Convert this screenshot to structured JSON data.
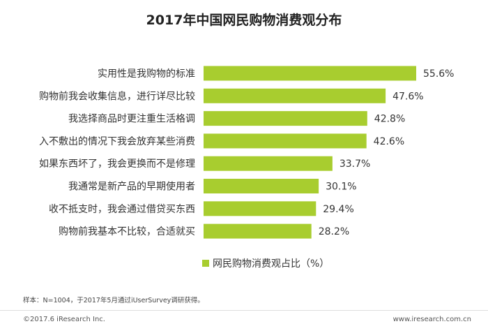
{
  "chart_data": {
    "type": "bar",
    "orientation": "horizontal",
    "title": "2017年中国网民购物消费观分布",
    "categories": [
      "实用性是我购物的标准",
      "购物前我会收集信息，进行详尽比较",
      "我选择商品时更注重生活格调",
      "入不敷出的情况下我会放弃某些消费",
      "如果东西坏了，我会更换而不是修理",
      "我通常是新产品的早期使用者",
      "收不抵支时，我会通过借贷买东西",
      "购物前我基本不比较，合适就买"
    ],
    "series": [
      {
        "name": "网民购物消费观占比（%）",
        "values": [
          55.6,
          47.6,
          42.8,
          42.6,
          33.7,
          30.1,
          29.4,
          28.2
        ],
        "labels": [
          "55.6%",
          "47.6%",
          "42.8%",
          "42.6%",
          "33.7%",
          "30.1%",
          "29.4%",
          "28.2%"
        ]
      }
    ],
    "bar_color": "#a8cd2f",
    "legend": "bottom-center"
  },
  "footer": {
    "note": "样本：N=1004，于2017年5月通过iUserSurvey调研获得。",
    "copyright": "©2017.6 iResearch Inc.",
    "website": "www.iresearch.com.cn"
  }
}
